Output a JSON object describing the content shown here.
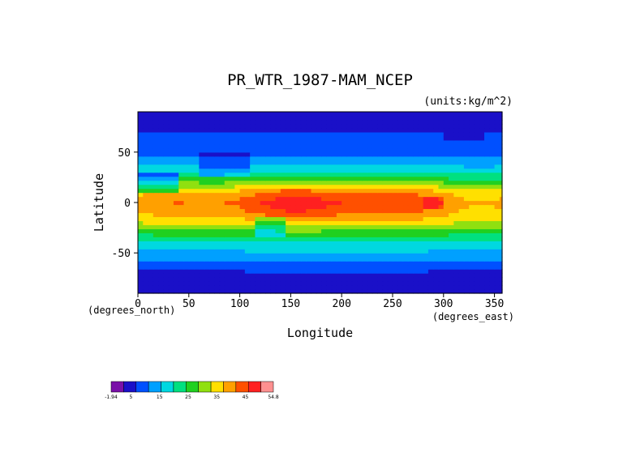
{
  "chart_data": {
    "type": "heatmap",
    "title": "PR_WTR_1987-MAM_NCEP",
    "units_label": "(units:kg/m^2)",
    "xlabel": "Longitude",
    "ylabel": "Latitude",
    "x_unit_label": "(degrees_east)",
    "y_unit_label": "(degrees_north)",
    "xlim": [
      0,
      357.5
    ],
    "ylim": [
      -90,
      90
    ],
    "x_ticks": [
      0,
      50,
      100,
      150,
      200,
      250,
      300,
      350
    ],
    "y_ticks": [
      -50,
      0,
      50
    ],
    "x_tick_labels": [
      "0",
      "50",
      "100",
      "150",
      "200",
      "250",
      "300",
      "350"
    ],
    "y_tick_labels": [
      "-50",
      "0",
      "50"
    ],
    "grid": false,
    "value_range": [
      -1.94,
      54.8
    ],
    "colorbar": {
      "levels": [
        -1.94,
        0,
        5,
        10,
        15,
        20,
        25,
        30,
        35,
        40,
        45,
        50,
        54.8
      ],
      "tick_labels": [
        "-1.94",
        "5",
        "15",
        "25",
        "35",
        "45",
        "54.8"
      ],
      "tick_values": [
        -1.94,
        5,
        15,
        25,
        35,
        45,
        54.8
      ],
      "colors": [
        "#7a10a8",
        "#1a10c8",
        "#0050ff",
        "#00a0ff",
        "#00d8e0",
        "#00e080",
        "#20d020",
        "#90e010",
        "#ffe000",
        "#ffa000",
        "#ff5000",
        "#ff2020",
        "#ff9090"
      ]
    },
    "zonal_mean_precipitable_water": {
      "latitudes": [
        -90,
        -80,
        -70,
        -60,
        -50,
        -40,
        -30,
        -20,
        -10,
        0,
        10,
        20,
        30,
        40,
        50,
        60,
        70,
        80,
        90
      ],
      "values": [
        1,
        2,
        4,
        9,
        14,
        19,
        27,
        37,
        44,
        47,
        43,
        31,
        19,
        13,
        9,
        7,
        5,
        4,
        3
      ]
    }
  }
}
